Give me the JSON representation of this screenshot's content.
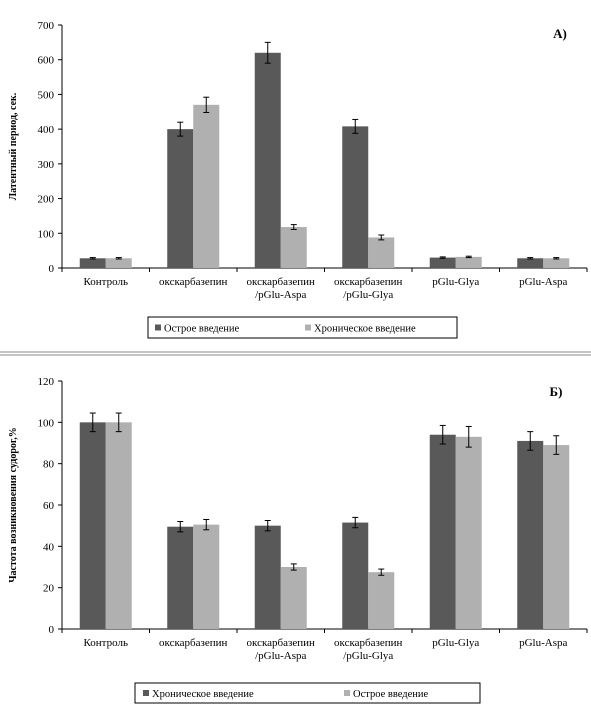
{
  "chart_data": [
    {
      "type": "bar",
      "panel_label": "А)",
      "ylabel": "Латентный период, сек.",
      "ylim": [
        0,
        700
      ],
      "yticks": [
        "0",
        "100",
        "200",
        "300",
        "400",
        "500",
        "600",
        "700"
      ],
      "categories": [
        [
          "Контроль"
        ],
        [
          "окскарбазепин"
        ],
        [
          "окскарбазепин",
          "/pGlu-Aspa"
        ],
        [
          "окскарбазепин",
          "/pGlu-Glya"
        ],
        [
          "pGlu-Glya"
        ],
        [
          "pGlu-Aspa"
        ]
      ],
      "series": [
        {
          "name": "Острое введение",
          "color": "#595959",
          "values": [
            28,
            400,
            620,
            408,
            30,
            28
          ],
          "errors": [
            2,
            20,
            30,
            20,
            2,
            2
          ]
        },
        {
          "name": "Хроническое введение",
          "color": "#b0b0b0",
          "values": [
            28,
            470,
            118,
            88,
            32,
            28
          ],
          "errors": [
            2,
            22,
            7,
            7,
            2,
            2
          ]
        }
      ],
      "legend_position": "bottom",
      "grid": false
    },
    {
      "type": "bar",
      "panel_label": "Б)",
      "ylabel": "Частота возникновения судорог,%",
      "ylim": [
        0,
        120
      ],
      "yticks": [
        "0",
        "20",
        "40",
        "60",
        "80",
        "100",
        "120"
      ],
      "categories": [
        [
          "Контроль"
        ],
        [
          "окскарбазепин"
        ],
        [
          "окскарбазепин",
          "/pGlu-Aspa"
        ],
        [
          "окскарбазепин",
          "/pGlu-Glya"
        ],
        [
          "pGlu-Glya"
        ],
        [
          "pGlu-Aspa"
        ]
      ],
      "series": [
        {
          "name": "Хроническое введение",
          "color": "#595959",
          "values": [
            100,
            49.5,
            50,
            51.5,
            94,
            91
          ],
          "errors": [
            4.5,
            2.5,
            2.5,
            2.5,
            4.5,
            4.5
          ]
        },
        {
          "name": "Острое введение",
          "color": "#b0b0b0",
          "values": [
            100,
            50.5,
            30,
            27.5,
            93,
            89
          ],
          "errors": [
            4.5,
            2.5,
            1.5,
            1.5,
            5,
            4.5
          ]
        }
      ],
      "legend_position": "bottom",
      "grid": false
    }
  ]
}
